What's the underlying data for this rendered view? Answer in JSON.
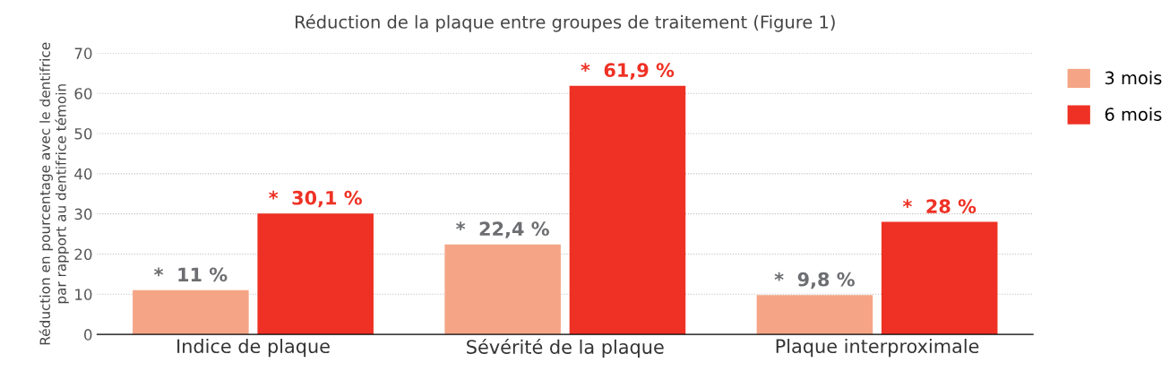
{
  "chart_data": {
    "type": "bar",
    "title": "Réduction de la plaque entre groupes de traitement (Figure 1)",
    "ylabel": "Réduction en pourcentage avec le dentifrice\npar rapport au dentifrice témoin",
    "categories": [
      "Indice de plaque",
      "Sévérité de la plaque",
      "Plaque interproximale"
    ],
    "series": [
      {
        "name": "3 mois",
        "color": "#f5a585",
        "values": [
          11,
          22.4,
          9.8
        ],
        "value_labels": [
          "*  11 %",
          "*  22,4 %",
          "*  9,8 %"
        ]
      },
      {
        "name": "6 mois",
        "color": "#ee3124",
        "values": [
          30.1,
          61.9,
          28
        ],
        "value_labels": [
          "*  30,1 %",
          "*  61,9 %",
          "*  28 %"
        ]
      }
    ],
    "ylim": [
      0,
      70
    ],
    "yticks": [
      0,
      10,
      20,
      30,
      40,
      50,
      60,
      70
    ],
    "grid": "y",
    "legend": "right"
  }
}
